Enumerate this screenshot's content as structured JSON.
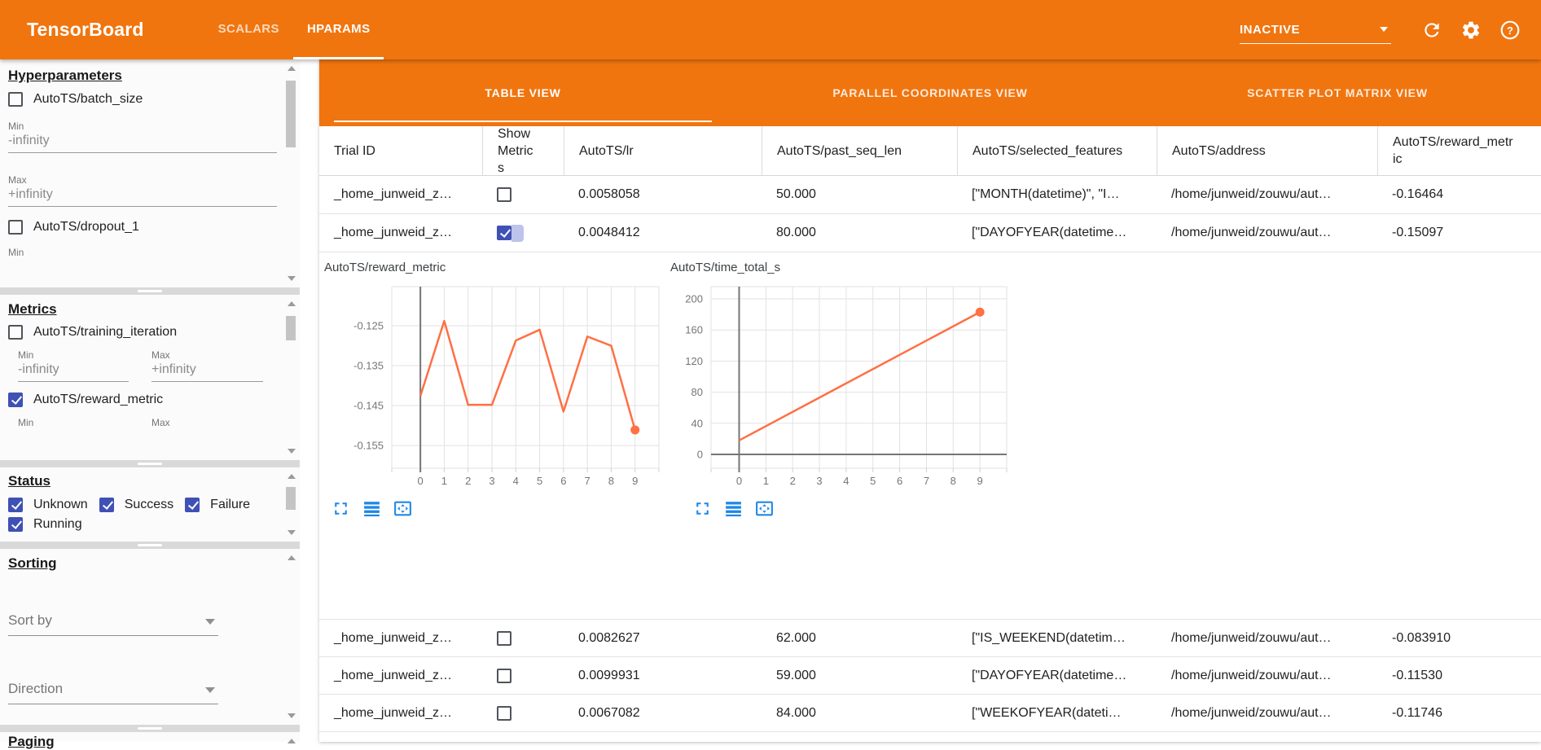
{
  "colors": {
    "appbar_orange": "#f0750f",
    "checkbox_indigo": "#3f51b5",
    "chart_line_orange": "#ff7043",
    "chart_icon_blue": "#1e88e5"
  },
  "app_bar": {
    "title": "TensorBoard",
    "nav_tabs": [
      {
        "label": "SCALARS",
        "active": false
      },
      {
        "label": "HPARAMS",
        "active": true
      }
    ],
    "run_selector_value": "INACTIVE",
    "icons": [
      "chevron-down-icon",
      "refresh-icon",
      "settings-icon",
      "help-icon"
    ]
  },
  "sidebar": {
    "sections": {
      "hyperparameters": {
        "heading": "Hyperparameters",
        "params": [
          {
            "label": "AutoTS/batch_size",
            "checked": false,
            "min_label": "Min",
            "min_value": "-infinity",
            "max_label": "Max",
            "max_value": "+infinity"
          },
          {
            "label": "AutoTS/dropout_1",
            "checked": false,
            "min_label": "Min"
          }
        ]
      },
      "metrics": {
        "heading": "Metrics",
        "items": [
          {
            "label": "AutoTS/training_iteration",
            "checked": false,
            "min_label": "Min",
            "min_value": "-infinity",
            "max_label": "Max",
            "max_value": "+infinity"
          },
          {
            "label": "AutoTS/reward_metric",
            "checked": true,
            "min_label": "Min",
            "max_label": "Max"
          }
        ]
      },
      "status": {
        "heading": "Status",
        "options": [
          {
            "label": "Unknown",
            "checked": true
          },
          {
            "label": "Success",
            "checked": true
          },
          {
            "label": "Failure",
            "checked": true
          },
          {
            "label": "Running",
            "checked": true
          }
        ]
      },
      "sorting": {
        "heading": "Sorting",
        "sort_by_placeholder": "Sort by",
        "direction_placeholder": "Direction"
      },
      "paging": {
        "heading": "Paging"
      }
    }
  },
  "main": {
    "view_tabs": [
      {
        "label": "TABLE VIEW",
        "active": true
      },
      {
        "label": "PARALLEL COORDINATES VIEW",
        "active": false
      },
      {
        "label": "SCATTER PLOT MATRIX VIEW",
        "active": false
      }
    ],
    "table": {
      "columns": [
        "Trial ID",
        "Show Metrics",
        "AutoTS/lr",
        "AutoTS/past_seq_len",
        "AutoTS/selected_features",
        "AutoTS/address",
        "AutoTS/reward_metric"
      ],
      "rows_top": [
        {
          "trial_id": "_home_junweid_z…",
          "show_metrics": false,
          "lr": "0.0058058",
          "past_seq_len": "50.000",
          "selected_features": "[\"MONTH(datetime)\", \"I…",
          "address": "/home/junweid/zouwu/aut…",
          "reward_metric": "-0.16464"
        },
        {
          "trial_id": "_home_junweid_z…",
          "show_metrics": true,
          "lr": "0.0048412",
          "past_seq_len": "80.000",
          "selected_features": "[\"DAYOFYEAR(datetime…",
          "address": "/home/junweid/zouwu/aut…",
          "reward_metric": "-0.15097"
        }
      ],
      "rows_bottom": [
        {
          "trial_id": "_home_junweid_z…",
          "show_metrics": false,
          "lr": "0.0082627",
          "past_seq_len": "62.000",
          "selected_features": "[\"IS_WEEKEND(datetim…",
          "address": "/home/junweid/zouwu/aut…",
          "reward_metric": "-0.083910"
        },
        {
          "trial_id": "_home_junweid_z…",
          "show_metrics": false,
          "lr": "0.0099931",
          "past_seq_len": "59.000",
          "selected_features": "[\"DAYOFYEAR(datetime…",
          "address": "/home/junweid/zouwu/aut…",
          "reward_metric": "-0.11530"
        },
        {
          "trial_id": "_home_junweid_z…",
          "show_metrics": false,
          "lr": "0.0067082",
          "past_seq_len": "84.000",
          "selected_features": "[\"WEEKOFYEAR(dateti…",
          "address": "/home/junweid/zouwu/aut…",
          "reward_metric": "-0.11746"
        }
      ]
    },
    "chart_toolbar_icons": [
      "fullscreen-icon",
      "data-table-icon",
      "pan-zoom-reset-icon"
    ]
  },
  "chart_data": [
    {
      "type": "line",
      "title": "AutoTS/reward_metric",
      "x": [
        0,
        1,
        2,
        3,
        4,
        5,
        6,
        7,
        8,
        9
      ],
      "values": [
        -0.1426,
        -0.1238,
        -0.1448,
        -0.1448,
        -0.1287,
        -0.126,
        -0.1465,
        -0.1277,
        -0.13,
        -0.1511
      ],
      "xlabel": "",
      "ylabel": "",
      "xlim": [
        -1.2,
        10.0
      ],
      "ylim": [
        -0.1607,
        -0.1152
      ],
      "xticks": [
        0,
        1,
        2,
        3,
        4,
        5,
        6,
        7,
        8,
        9
      ],
      "yticks": [
        -0.125,
        -0.135,
        -0.145,
        -0.155
      ],
      "ytick_labels": [
        "-0.125",
        "-0.135",
        "-0.145",
        "-0.155"
      ],
      "grid": true,
      "x_zero_line": true,
      "y_zero_line": false,
      "end_marker": true,
      "line_color": "#ff7043"
    },
    {
      "type": "line",
      "title": "AutoTS/time_total_s",
      "x": [
        0,
        9
      ],
      "values": [
        18,
        183
      ],
      "xlabel": "",
      "ylabel": "",
      "xlim": [
        -1.05,
        10.0
      ],
      "ylim": [
        -17.8,
        215.7
      ],
      "xticks": [
        0,
        1,
        2,
        3,
        4,
        5,
        6,
        7,
        8,
        9
      ],
      "yticks": [
        200,
        160,
        120,
        80,
        40,
        0
      ],
      "ytick_labels": [
        "200",
        "160",
        "120",
        "80",
        "40",
        "0"
      ],
      "grid": true,
      "x_zero_line": true,
      "y_zero_line": true,
      "end_marker": true,
      "line_color": "#ff7043"
    }
  ]
}
